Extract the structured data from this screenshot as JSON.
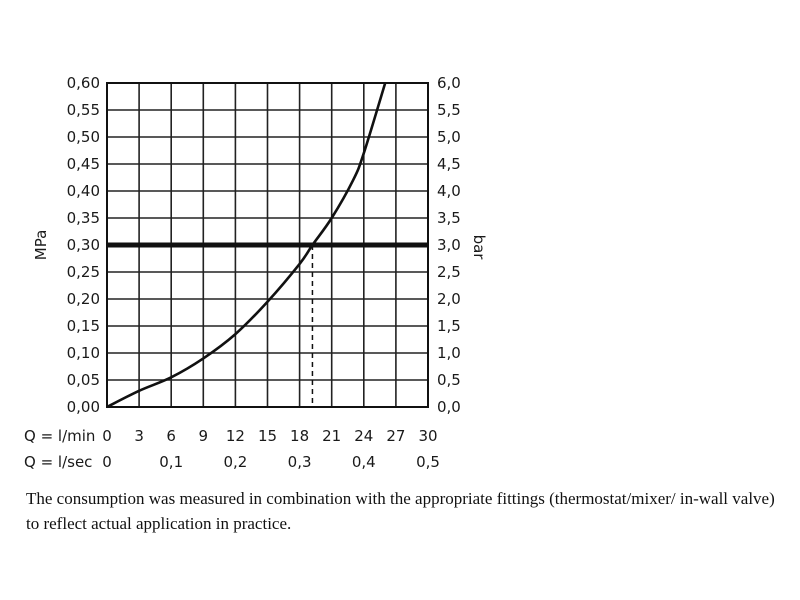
{
  "chart_data": {
    "type": "line",
    "title": "",
    "ylabel_left": "MPa",
    "ylabel_right": "bar",
    "ylim": [
      0,
      0.6
    ],
    "xlim": [
      0,
      30
    ],
    "grid": true,
    "y_ticks_left": [
      "0,00",
      "0,05",
      "0,10",
      "0,15",
      "0,20",
      "0,25",
      "0,30",
      "0,35",
      "0,40",
      "0,45",
      "0,50",
      "0,55",
      "0,60"
    ],
    "y_ticks_right": [
      "0,0",
      "0,5",
      "1,0",
      "1,5",
      "2,0",
      "2,5",
      "3,0",
      "3,5",
      "4,0",
      "4,5",
      "5,0",
      "5,5",
      "6,0"
    ],
    "x_axis_lmin": {
      "label": "Q = l/min",
      "ticks": [
        "0",
        "3",
        "6",
        "9",
        "12",
        "15",
        "18",
        "21",
        "24",
        "27",
        "30"
      ]
    },
    "x_axis_lsec": {
      "label": "Q = l/sec",
      "ticks": [
        "0",
        "0,1",
        "0,2",
        "0,3",
        "0,4",
        "0,5"
      ]
    },
    "series": [
      {
        "x": [
          0,
          3,
          6,
          9,
          12,
          15,
          18,
          19.2,
          21,
          23,
          24,
          26
        ],
        "y": [
          0,
          0.03,
          0.055,
          0.09,
          0.135,
          0.195,
          0.265,
          0.3,
          0.35,
          0.42,
          0.47,
          0.6
        ]
      }
    ],
    "reference_line": {
      "y": 0.3
    },
    "marker_line": {
      "x": 19.2,
      "style": "dashed"
    }
  },
  "caption": "The consumption was measured in combination with the appropriate fittings (thermostat/mixer/ in-wall valve) to reflect actual application in practice."
}
